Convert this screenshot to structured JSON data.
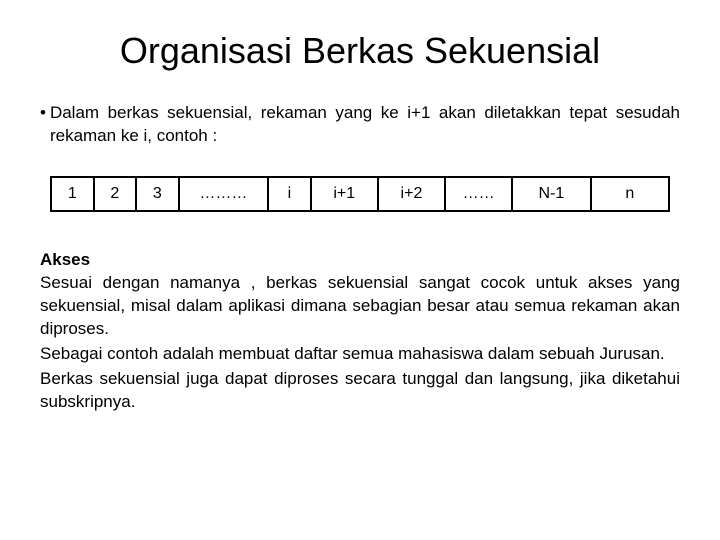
{
  "title": "Organisasi Berkas Sekuensial",
  "intro_bullet": "•",
  "intro_text": "Dalam berkas sekuensial, rekaman yang ke i+1 akan diletakkan tepat sesudah rekaman ke i, contoh :",
  "table": {
    "cells": [
      "1",
      "2",
      "3",
      "………",
      "i",
      "i+1",
      "i+2",
      "……",
      "N-1",
      "n"
    ],
    "border_color": "#000000",
    "cell_font_size": 16
  },
  "akses": {
    "heading": "Akses",
    "p1": "Sesuai dengan namanya , berkas sekuensial sangat cocok untuk akses yang sekuensial, misal dalam aplikasi dimana sebagian besar atau semua rekaman akan diproses.",
    "p2": "Sebagai contoh adalah membuat daftar semua mahasiswa dalam sebuah Jurusan.",
    "p3": "Berkas sekuensial juga dapat diproses secara tunggal dan langsung, jika diketahui subskripnya."
  },
  "colors": {
    "background": "#ffffff",
    "text": "#000000"
  }
}
